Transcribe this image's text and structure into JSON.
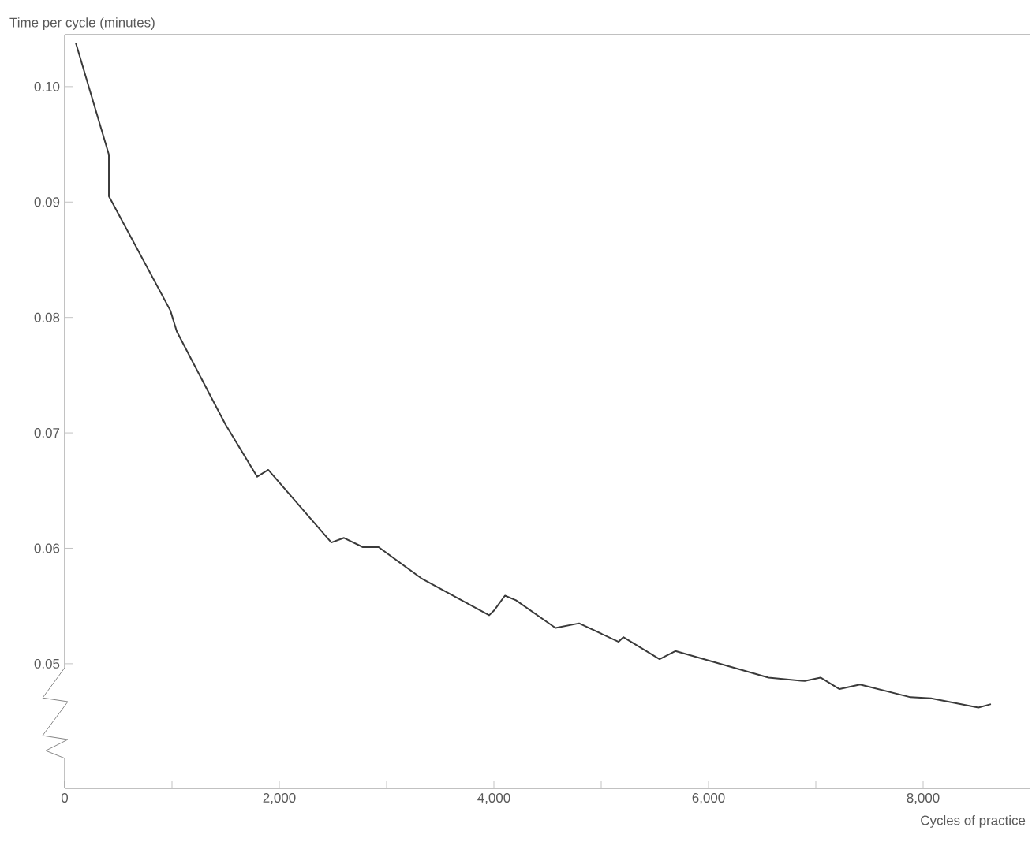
{
  "chart_data": {
    "type": "line",
    "xlabel": "Cycles of practice",
    "ylabel": "Time per cycle (minutes)",
    "color": "#3a3a3a",
    "x": [
      103,
      412,
      412,
      985,
      1044,
      1353,
      1500,
      1794,
      1897,
      2485,
      2603,
      2779,
      2926,
      3324,
      3956,
      4000,
      4103,
      4206,
      4574,
      4794,
      5162,
      5206,
      5544,
      5691,
      6559,
      6897,
      7044,
      7221,
      7412,
      7882,
      8074,
      8515,
      8632
    ],
    "values": [
      0.1038,
      0.0941,
      0.0905,
      0.0806,
      0.0788,
      0.0733,
      0.0707,
      0.0662,
      0.0668,
      0.0605,
      0.0609,
      0.0601,
      0.0601,
      0.0574,
      0.0542,
      0.0546,
      0.0559,
      0.0555,
      0.0531,
      0.0535,
      0.0519,
      0.0523,
      0.0504,
      0.0511,
      0.0488,
      0.0485,
      0.0488,
      0.0478,
      0.0482,
      0.0471,
      0.047,
      0.0462,
      0.0465
    ],
    "xlim": [
      0,
      9000
    ],
    "ylim": [
      0.0392,
      0.1045
    ],
    "xticks": [
      {
        "value": 0,
        "label": "0"
      },
      {
        "value": 1000,
        "label": null
      },
      {
        "value": 2000,
        "label": "2,000"
      },
      {
        "value": 3000,
        "label": null
      },
      {
        "value": 4000,
        "label": "4,000"
      },
      {
        "value": 5000,
        "label": null
      },
      {
        "value": 6000,
        "label": "6,000"
      },
      {
        "value": 7000,
        "label": null
      },
      {
        "value": 8000,
        "label": "8,000"
      }
    ],
    "yticks": [
      {
        "value": 0.05,
        "label": "0.05"
      },
      {
        "value": 0.06,
        "label": "0.06"
      },
      {
        "value": 0.07,
        "label": "0.07"
      },
      {
        "value": 0.08,
        "label": "0.08"
      },
      {
        "value": 0.09,
        "label": "0.09"
      },
      {
        "value": 0.1,
        "label": "0.10"
      }
    ]
  }
}
